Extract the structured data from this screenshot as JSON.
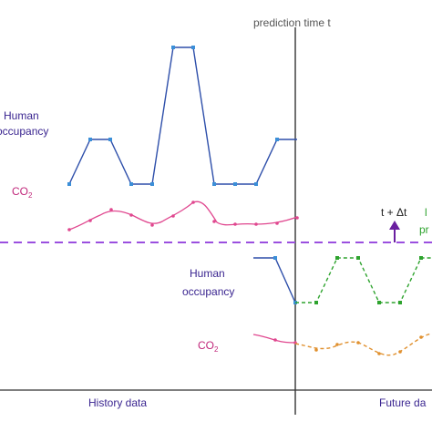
{
  "header": {
    "prediction_label": "prediction time t"
  },
  "history": {
    "human_label_line1": "Human",
    "human_label_line2": "occupancy",
    "co2_label": "CO",
    "co2_subscript": "2",
    "section_label": "History data"
  },
  "present": {
    "human_label_line1": "Human",
    "human_label_line2": "occupancy",
    "co2_label": "CO",
    "co2_subscript": "2"
  },
  "future": {
    "delta_label": "t + Δt",
    "section_label": "Future da",
    "cut_text_line1": "l",
    "cut_text_line2": "pr"
  },
  "colors": {
    "occupancy": "#2e4faa",
    "occupancy_marker": "#3b8fd8",
    "co2": "#e0478f",
    "co2_text": "#c0267a",
    "label_text": "#3a2590",
    "threshold": "#9b4fdf",
    "arrow": "#6a1fa0",
    "prediction_occupancy": "#2ea32e",
    "prediction_co2": "#e0902e",
    "axis": "#333333"
  }
}
